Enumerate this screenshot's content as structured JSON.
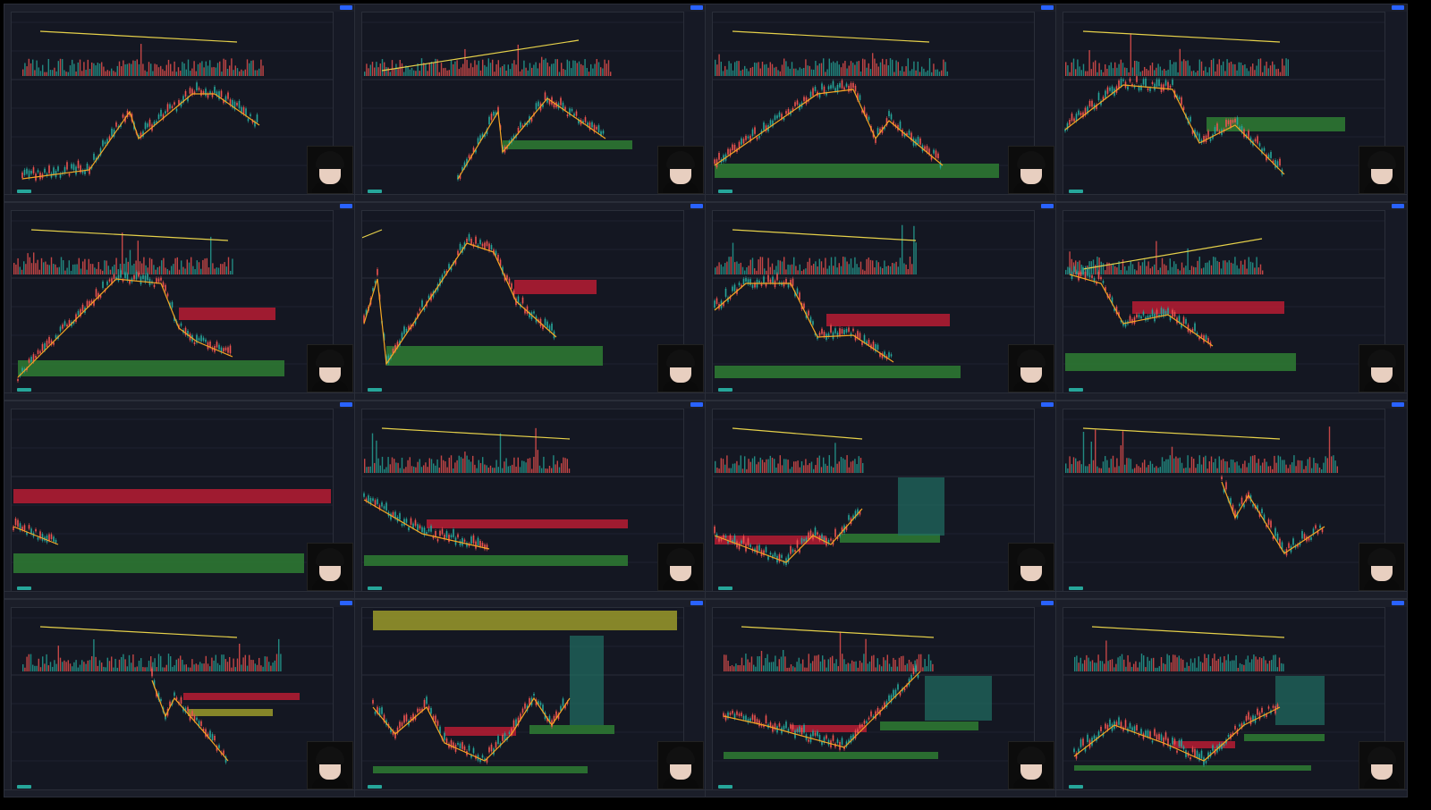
{
  "window": {
    "title": ""
  },
  "colors": {
    "background": "#141722",
    "bull": "#26a69a",
    "bear": "#ef5350",
    "trend": "#f5a623",
    "trendline": "#e6d14a",
    "demand_zone": "#2e7d32",
    "supply_zone": "#b71c33",
    "accent": "#2962ff"
  },
  "tiles": [
    {
      "id": "r1c1",
      "volume": "flat",
      "zones": [],
      "webcam": true
    },
    {
      "id": "r1c2",
      "volume": "up",
      "zones": [
        "demand"
      ],
      "webcam": true
    },
    {
      "id": "r1c3",
      "volume": "down",
      "zones": [
        "demand"
      ],
      "webcam": true
    },
    {
      "id": "r1c4",
      "volume": "down",
      "zones": [
        "demand"
      ],
      "webcam": true
    },
    {
      "id": "r2c1",
      "volume": "down",
      "zones": [
        "supply",
        "demand"
      ],
      "webcam": true
    },
    {
      "id": "r2c2",
      "volume": "flat",
      "zones": [
        "supply",
        "demand"
      ],
      "webcam": true
    },
    {
      "id": "r2c3",
      "volume": "down",
      "zones": [
        "supply",
        "demand"
      ],
      "webcam": true
    },
    {
      "id": "r2c4",
      "volume": "up",
      "zones": [
        "supply",
        "demand"
      ],
      "webcam": true
    },
    {
      "id": "r3c1",
      "volume": "none",
      "zones": [
        "supply",
        "demand"
      ],
      "webcam": true
    },
    {
      "id": "r3c2",
      "volume": "down",
      "zones": [
        "supply",
        "demand"
      ],
      "webcam": true
    },
    {
      "id": "r3c3",
      "volume": "down",
      "zones": [
        "supply",
        "demand",
        "position"
      ],
      "webcam": true
    },
    {
      "id": "r3c4",
      "volume": "flat",
      "zones": [],
      "webcam": true
    },
    {
      "id": "r4c1",
      "volume": "flat",
      "zones": [
        "supply",
        "yellow"
      ],
      "webcam": true
    },
    {
      "id": "r4c2",
      "volume": "none",
      "zones": [
        "yellow",
        "supply",
        "demand",
        "position"
      ],
      "webcam": true
    },
    {
      "id": "r4c3",
      "volume": "down",
      "zones": [
        "supply",
        "demand",
        "position"
      ],
      "webcam": true
    },
    {
      "id": "r4c4",
      "volume": "down",
      "zones": [
        "supply",
        "demand",
        "position"
      ],
      "webcam": true
    }
  ]
}
